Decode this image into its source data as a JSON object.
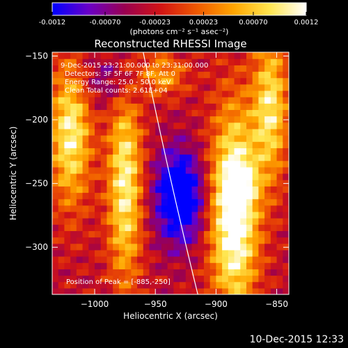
{
  "colorbar": {
    "ticks": [
      "-0.0012",
      "-0.00070",
      "-0.00023",
      "0.00023",
      "0.00070",
      "0.0012"
    ],
    "tick_values": [
      -0.0012,
      -0.0007,
      -0.00023,
      0.00023,
      0.0007,
      0.0012
    ],
    "range": [
      -0.0012,
      0.0012
    ],
    "unit_label": "(photons cm⁻² s⁻¹ asec⁻²)",
    "colormap": [
      "#0000ff",
      "#6a00c8",
      "#9a0050",
      "#d21414",
      "#f05a00",
      "#ffa500",
      "#ffe650",
      "#ffffff"
    ]
  },
  "chart_data": {
    "type": "heatmap",
    "title": "Reconstructed RHESSI Image",
    "xlabel": "Heliocentric X (arcsec)",
    "ylabel": "Heliocentric Y (arcsec)",
    "xlim": [
      -1035,
      -840
    ],
    "ylim": [
      -337,
      -147
    ],
    "xticks": [
      -1000,
      -950,
      -900,
      -850
    ],
    "xtick_labels": [
      "−1000",
      "−950",
      "−900",
      "−850"
    ],
    "yticks": [
      -150,
      -200,
      -250,
      -300
    ],
    "ytick_labels": [
      "−150",
      "−200",
      "−250",
      "−300"
    ],
    "info_lines": [
      "9-Dec-2015 23:21:00.000 to 23:31:00.000",
      "Detectors: 3F 5F 6F 7F 8F, Att 0",
      "Energy Range: 25.0 - 50.0 keV",
      "Clean    Total counts: 2.61E+04"
    ],
    "peak_label": "Position of Peak = [-885,-250]",
    "peak_position": [
      -885,
      -250
    ],
    "limb_curve": {
      "x": [
        -960,
        -915
      ],
      "y": [
        -147,
        -337
      ]
    },
    "sources": [
      {
        "x": -1020,
        "y": -210,
        "sx": 12,
        "sy": 40,
        "amp": 0.55
      },
      {
        "x": -975,
        "y": -250,
        "sx": 10,
        "sy": 55,
        "amp": 0.55
      },
      {
        "x": -945,
        "y": -165,
        "sx": 14,
        "sy": 12,
        "amp": 0.35
      },
      {
        "x": -885,
        "y": -270,
        "sx": 14,
        "sy": 55,
        "amp": 0.75
      },
      {
        "x": -880,
        "y": -250,
        "sx": 8,
        "sy": 10,
        "amp": 0.35
      },
      {
        "x": -855,
        "y": -190,
        "sx": 10,
        "sy": 40,
        "amp": 0.5
      },
      {
        "x": -930,
        "y": -260,
        "sx": 14,
        "sy": 25,
        "amp": -0.6
      },
      {
        "x": -985,
        "y": -170,
        "sx": 20,
        "sy": 15,
        "amp": -0.2
      }
    ]
  },
  "footer": {
    "timestamp": "10-Dec-2015 12:33"
  }
}
